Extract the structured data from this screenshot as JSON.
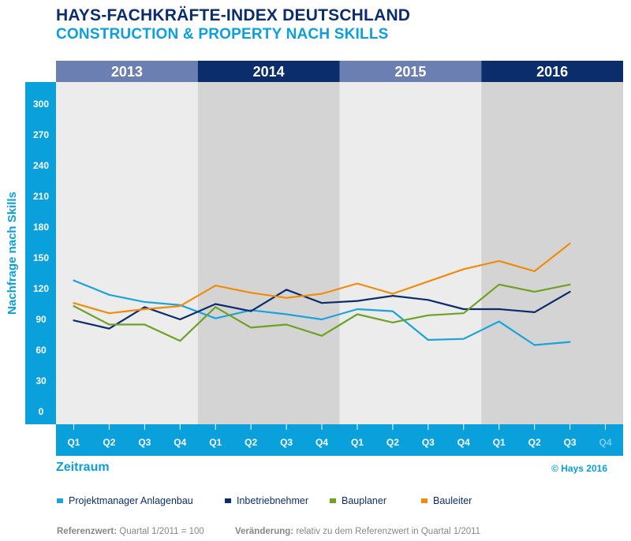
{
  "header": {
    "title": "HAYS-FACHKRÄFTE-INDEX DEUTSCHLAND",
    "subtitle": "CONSTRUCTION & PROPERTY NACH SKILLS"
  },
  "footer": {
    "copyright": "© Hays 2016",
    "ref_label": "Referenzwert:",
    "ref_value": "Quartal 1/2011 = 100",
    "change_label": "Veränderung:",
    "change_value": "relativ zu dem Referenzwert in Quartal 1/2011"
  },
  "colors": {
    "blue_bar": "#0aa0dc",
    "navy": "#0c2d6b",
    "year_light": "#6c7fb3",
    "panel_light": "#ececec",
    "panel_dark": "#d4d4d4"
  },
  "chart_data": {
    "type": "line",
    "title": "HAYS-FACHKRÄFTE-INDEX DEUTSCHLAND",
    "subtitle": "CONSTRUCTION & PROPERTY NACH SKILLS",
    "xlabel": "Zeitraum",
    "ylabel": "Nachfrage nach Skills",
    "ylim": [
      0,
      300
    ],
    "yticks": [
      0,
      30,
      60,
      90,
      120,
      150,
      180,
      210,
      240,
      270,
      300
    ],
    "years": [
      "2013",
      "2014",
      "2015",
      "2016"
    ],
    "quarters": [
      "Q1",
      "Q2",
      "Q3",
      "Q4"
    ],
    "grid": false,
    "legend_position": "bottom",
    "series": [
      {
        "name": "Projektmanager Anlagenbau",
        "color": "#1aa3dc",
        "values": [
          128,
          114,
          107,
          104,
          91,
          99,
          95,
          90,
          100,
          98,
          70,
          71,
          88,
          65,
          68
        ]
      },
      {
        "name": "Inbetriebnehmer",
        "color": "#0c2d6b",
        "values": [
          89,
          81,
          102,
          90,
          105,
          98,
          119,
          106,
          108,
          113,
          109,
          100,
          100,
          97,
          117
        ]
      },
      {
        "name": "Bauplaner",
        "color": "#6fa123",
        "values": [
          103,
          85,
          85,
          69,
          102,
          82,
          85,
          74,
          95,
          87,
          94,
          96,
          124,
          117,
          124
        ]
      },
      {
        "name": "Bauleiter",
        "color": "#f08c0a",
        "values": [
          106,
          96,
          100,
          103,
          123,
          116,
          111,
          115,
          125,
          115,
          127,
          139,
          147,
          137,
          164
        ]
      }
    ]
  }
}
